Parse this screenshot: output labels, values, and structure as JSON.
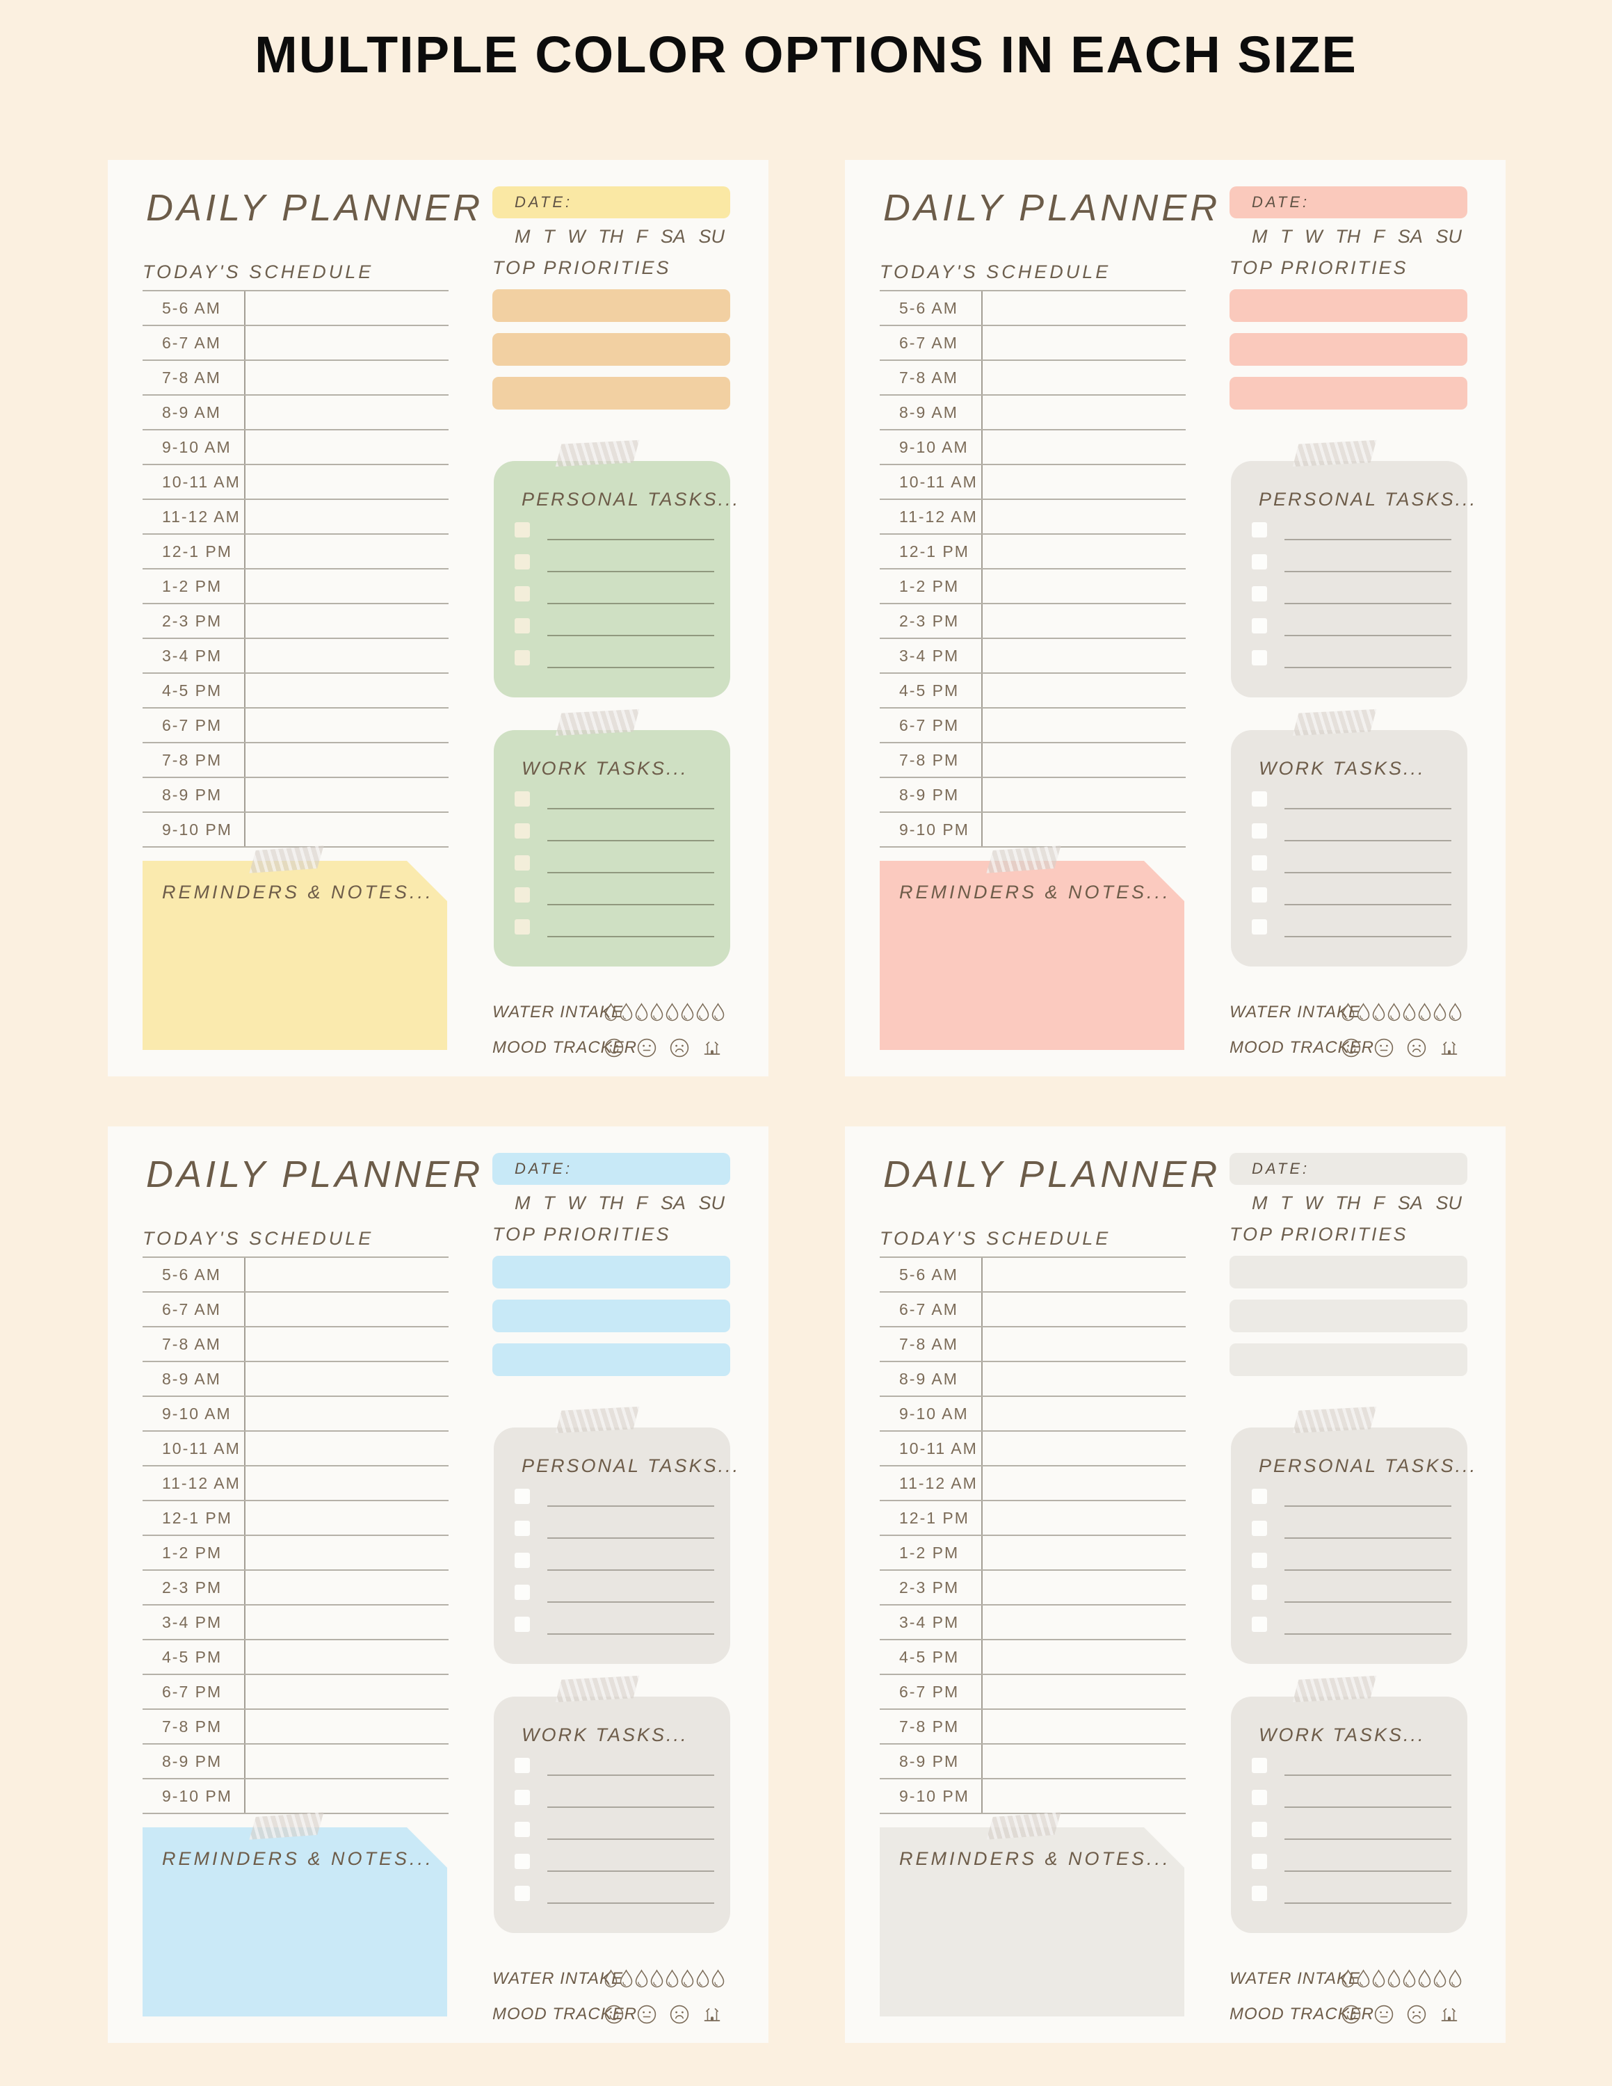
{
  "title": "MULTIPLE COLOR OPTIONS IN EACH SIZE",
  "planner": {
    "heading": "DAILY PLANNER",
    "date_label": "DATE:",
    "days": [
      "M",
      "T",
      "W",
      "TH",
      "F",
      "SA",
      "SU"
    ],
    "schedule_title": "TODAY'S SCHEDULE",
    "times": [
      "5-6 AM",
      "6-7 AM",
      "7-8 AM",
      "8-9 AM",
      "9-10 AM",
      "10-11 AM",
      "11-12 AM",
      "12-1 PM",
      "1-2 PM",
      "2-3 PM",
      "3-4 PM",
      "4-5 PM",
      "6-7 PM",
      "7-8 PM",
      "8-9 PM",
      "9-10 PM"
    ],
    "priorities_title": "TOP PRIORITIES",
    "priorities_slots": 3,
    "personal_title": "PERSONAL TASKS...",
    "work_title": "WORK TASKS...",
    "task_slots": 5,
    "reminders_title": "REMINDERS & NOTES...",
    "water_label": "WATER INTAKE",
    "water_slots": 8,
    "mood_label": "MOOD TRACKER",
    "mood_icons": [
      "happy-face-icon",
      "neutral-face-icon",
      "sad-face-icon",
      "house-icon"
    ],
    "icon_stroke": "#7b6b58"
  },
  "variants": [
    {
      "name": "yellow-green",
      "date_bar": "#fae8a4",
      "priority": "#f2d0a2",
      "panel": "#cfe0c3",
      "checkbox": "#f3eeda",
      "task_line": "#90987e",
      "reminders": "#faeaae"
    },
    {
      "name": "pink",
      "date_bar": "#fac9bc",
      "priority": "#fac9bc",
      "panel": "#e9e6e1",
      "checkbox": "#fdfdfb",
      "task_line": "#aaa69d",
      "reminders": "#fbcabf"
    },
    {
      "name": "blue",
      "date_bar": "#c8e9f7",
      "priority": "#c8e9f7",
      "panel": "#e9e6e1",
      "checkbox": "#fdfdfb",
      "task_line": "#aaa69d",
      "reminders": "#cae9f7"
    },
    {
      "name": "gray",
      "date_bar": "#eceae5",
      "priority": "#eceae5",
      "panel": "#e9e6e1",
      "checkbox": "#fdfdfb",
      "task_line": "#aaa69d",
      "reminders": "#eceae5"
    }
  ]
}
